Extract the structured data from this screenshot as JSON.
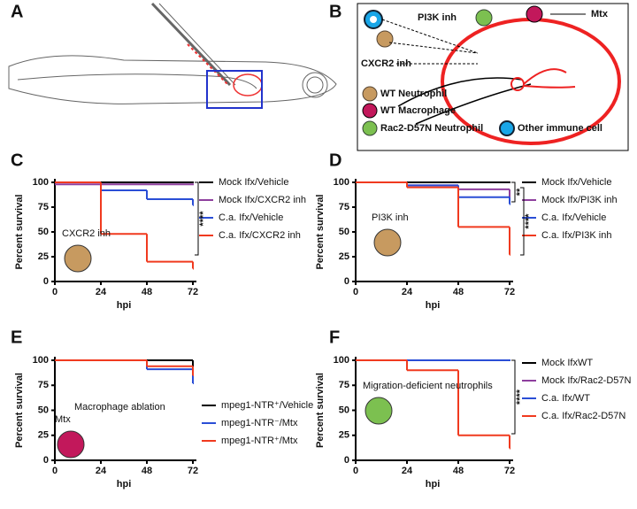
{
  "panels": [
    "A",
    "B",
    "C",
    "D",
    "E",
    "F"
  ],
  "diagram": {
    "pi3k": "PI3K inh",
    "mtx": "Mtx",
    "cxcr2": "CXCR2 inh",
    "legend": [
      "WT Neutrophil",
      "WT Macrophage",
      "Rac2-D57N Neutrophil",
      "Other immune cell"
    ]
  },
  "chart_data": [
    {
      "type": "step",
      "x": [
        0,
        24,
        48,
        72
      ],
      "xlim": [
        0,
        72
      ],
      "xticks": [
        0,
        24,
        48,
        72
      ],
      "ylim": [
        0,
        100
      ],
      "yticks": [
        0,
        25,
        50,
        75,
        100
      ],
      "xlabel": "hpi",
      "ylabel": "Percent survival",
      "annotation": "CXCR2 inh",
      "significance": [
        "****"
      ],
      "series": [
        {
          "name": "Mock Ifx/Vehicle",
          "color": "#000000",
          "values": [
            100,
            100,
            100,
            100
          ]
        },
        {
          "name": "Mock Ifx/CXCR2 inh",
          "color": "#8e3f9e",
          "values": [
            98,
            98,
            98,
            98
          ]
        },
        {
          "name": "C.a. Ifx/Vehicle",
          "color": "#2a4ed6",
          "values": [
            100,
            92,
            83,
            77
          ]
        },
        {
          "name": "C.a. Ifx/CXCR2 inh",
          "color": "#f03a1f",
          "values": [
            100,
            48,
            20,
            13
          ]
        }
      ]
    },
    {
      "type": "step",
      "x": [
        0,
        24,
        48,
        72
      ],
      "xlim": [
        0,
        72
      ],
      "xticks": [
        0,
        24,
        48,
        72
      ],
      "ylim": [
        0,
        100
      ],
      "yticks": [
        0,
        25,
        50,
        75,
        100
      ],
      "xlabel": "hpi",
      "ylabel": "Percent survival",
      "annotation": "PI3K inh",
      "significance": [
        "**",
        "****"
      ],
      "series": [
        {
          "name": "Mock Ifx/Vehicle",
          "color": "#000000",
          "values": [
            100,
            100,
            100,
            100
          ]
        },
        {
          "name": "Mock Ifx/PI3K inh",
          "color": "#8e3f9e",
          "values": [
            100,
            97,
            93,
            85
          ]
        },
        {
          "name": "C.a. Ifx/Vehicle",
          "color": "#2a4ed6",
          "values": [
            100,
            97,
            85,
            78
          ]
        },
        {
          "name": "C.a. Ifx/PI3K inh",
          "color": "#f03a1f",
          "values": [
            100,
            95,
            55,
            27
          ]
        }
      ]
    },
    {
      "type": "step",
      "x": [
        0,
        24,
        48,
        72
      ],
      "xlim": [
        0,
        72
      ],
      "xticks": [
        0,
        24,
        48,
        72
      ],
      "ylim": [
        0,
        100
      ],
      "yticks": [
        0,
        25,
        50,
        75,
        100
      ],
      "xlabel": "hpi",
      "ylabel": "Percent survival",
      "annotation": "Mtx",
      "annotation2": "Macrophage ablation",
      "significance": [],
      "series": [
        {
          "name": "mpeg1-NTR⁺/Vehicle",
          "color": "#000000",
          "values": [
            100,
            100,
            100,
            80
          ]
        },
        {
          "name": "mpeg1-NTR⁻/Mtx",
          "color": "#2a4ed6",
          "values": [
            100,
            100,
            91,
            77
          ]
        },
        {
          "name": "mpeg1-NTR⁺/Mtx",
          "color": "#f03a1f",
          "values": [
            100,
            100,
            94,
            85
          ]
        }
      ]
    },
    {
      "type": "step",
      "x": [
        0,
        24,
        48,
        72
      ],
      "xlim": [
        0,
        72
      ],
      "xticks": [
        0,
        24,
        48,
        72
      ],
      "ylim": [
        0,
        100
      ],
      "yticks": [
        0,
        25,
        50,
        75,
        100
      ],
      "xlabel": "hpi",
      "ylabel": "Percent survival",
      "annotation": "Migration-deficient neutrophils",
      "significance": [
        "****"
      ],
      "series": [
        {
          "name": "Mock IfxWT",
          "color": "#000000",
          "values": [
            100,
            100,
            100,
            100
          ]
        },
        {
          "name": "Mock Ifx/Rac2-D57N",
          "color": "#8e3f9e",
          "values": [
            100,
            100,
            100,
            100
          ]
        },
        {
          "name": "C.a. Ifx/WT",
          "color": "#2a4ed6",
          "values": [
            100,
            100,
            100,
            100
          ]
        },
        {
          "name": "C.a. Ifx/Rac2-D57N",
          "color": "#f03a1f",
          "values": [
            100,
            90,
            25,
            12
          ]
        }
      ]
    }
  ]
}
